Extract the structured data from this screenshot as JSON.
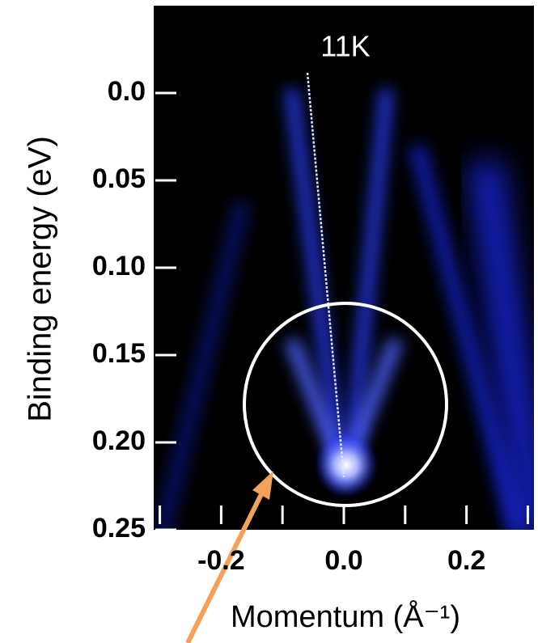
{
  "chart_data": {
    "type": "arpes",
    "title": "11K",
    "x_label": "Momentum (Å⁻¹)",
    "y_label": "Binding energy (eV)",
    "xlim": [
      -0.31,
      0.31
    ],
    "xticks": [
      -0.2,
      {
        "value": 0,
        "label": "0.0"
      },
      0.2
    ],
    "xminor_ticks": [
      -0.3,
      -0.1,
      0.1,
      0.3
    ],
    "ylim": [
      -0.05,
      0.25
    ],
    "y_inverted": true,
    "yticks": [
      {
        "value": 0,
        "label": "0.0"
      },
      0.05,
      {
        "value": 0.1,
        "label": "0.10"
      },
      0.15,
      {
        "value": 0.2,
        "label": "0.20"
      },
      0.25
    ]
  }
}
